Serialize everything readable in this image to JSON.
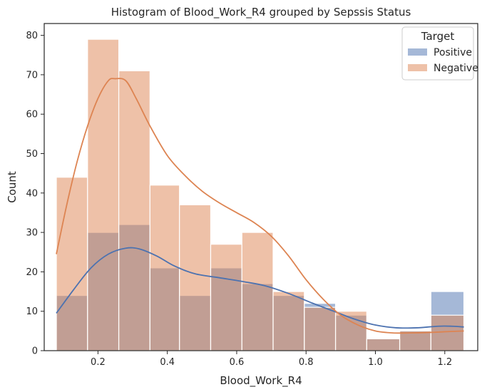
{
  "chart_data": {
    "type": "histogram",
    "title": "Histogram of Blood_Work_R4 grouped by Sepssis  Status",
    "xlabel": "Blood_Work_R4",
    "ylabel": "Count",
    "xlim": [
      0.045,
      1.295
    ],
    "ylim": [
      0,
      83
    ],
    "xticks": [
      0.2,
      0.4,
      0.6,
      0.8,
      1.0,
      1.2
    ],
    "xtick_labels": [
      "0.2",
      "0.4",
      "0.6",
      "0.8",
      "1.0",
      "1.2"
    ],
    "yticks": [
      0,
      10,
      20,
      30,
      40,
      50,
      60,
      70,
      80
    ],
    "ytick_labels": [
      "0",
      "10",
      "20",
      "30",
      "40",
      "50",
      "60",
      "70",
      "80"
    ],
    "bin_edges": [
      0.08,
      0.17,
      0.26,
      0.35,
      0.435,
      0.525,
      0.615,
      0.705,
      0.795,
      0.885,
      0.975,
      1.07,
      1.16,
      1.255
    ],
    "legend": {
      "title": "Target",
      "position": "upper right"
    },
    "series": [
      {
        "name": "Positive",
        "color": "#4c72b0",
        "values": [
          14,
          30,
          32,
          21,
          14,
          21,
          17,
          14,
          12,
          9,
          3,
          5,
          15
        ],
        "kde": [
          [
            0.08,
            9.5
          ],
          [
            0.13,
            15.5
          ],
          [
            0.18,
            21
          ],
          [
            0.23,
            24.5
          ],
          [
            0.28,
            26
          ],
          [
            0.32,
            25.8
          ],
          [
            0.37,
            24
          ],
          [
            0.42,
            21.5
          ],
          [
            0.48,
            19.5
          ],
          [
            0.55,
            18.5
          ],
          [
            0.62,
            17.5
          ],
          [
            0.68,
            16.5
          ],
          [
            0.75,
            14.5
          ],
          [
            0.82,
            12
          ],
          [
            0.88,
            10
          ],
          [
            0.94,
            8
          ],
          [
            1.0,
            6.5
          ],
          [
            1.06,
            5.8
          ],
          [
            1.12,
            5.8
          ],
          [
            1.18,
            6.2
          ],
          [
            1.22,
            6.2
          ],
          [
            1.255,
            6
          ]
        ]
      },
      {
        "name": "Negative",
        "color": "#dd8452",
        "values": [
          44,
          79,
          71,
          42,
          37,
          27,
          30,
          15,
          11,
          10,
          3,
          5,
          9
        ],
        "kde": [
          [
            0.08,
            24.5
          ],
          [
            0.11,
            37
          ],
          [
            0.14,
            48
          ],
          [
            0.17,
            57
          ],
          [
            0.2,
            64
          ],
          [
            0.23,
            68.5
          ],
          [
            0.25,
            69
          ],
          [
            0.28,
            68.5
          ],
          [
            0.31,
            64
          ],
          [
            0.35,
            57
          ],
          [
            0.4,
            49.5
          ],
          [
            0.45,
            44.5
          ],
          [
            0.5,
            40.5
          ],
          [
            0.55,
            37.5
          ],
          [
            0.6,
            35
          ],
          [
            0.65,
            32.5
          ],
          [
            0.7,
            29
          ],
          [
            0.75,
            24
          ],
          [
            0.8,
            18
          ],
          [
            0.85,
            13
          ],
          [
            0.9,
            9
          ],
          [
            0.95,
            6.5
          ],
          [
            1.0,
            5
          ],
          [
            1.05,
            4.5
          ],
          [
            1.1,
            4.5
          ],
          [
            1.15,
            4.6
          ],
          [
            1.2,
            4.8
          ],
          [
            1.255,
            5
          ]
        ]
      }
    ]
  }
}
